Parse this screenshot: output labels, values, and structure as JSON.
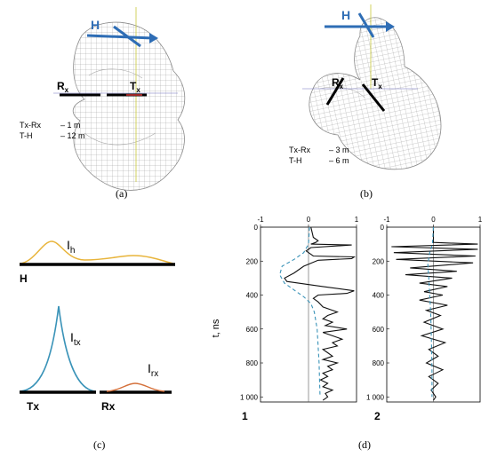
{
  "panel_a": {
    "H": "H",
    "Rx": "R",
    "Rx_sub": "x",
    "Tx": "T",
    "Tx_sub": "x",
    "param1_name": "Tx-Rx",
    "param1_val": "– 1 m",
    "param2_name": "T-H",
    "param2_val": "– 12 m",
    "caption": "(a)"
  },
  "panel_b": {
    "H": "H",
    "Rx": "R",
    "Rx_sub": "x",
    "Tx": "T",
    "Tx_sub": "x",
    "param1_name": "Tx-Rx",
    "param1_val": "– 3 m",
    "param2_name": "T-H",
    "param2_val": "– 6 m",
    "caption": "(b)"
  },
  "panel_c": {
    "Ih": "I",
    "Ih_sub": "h",
    "H": "H",
    "Itx": "I",
    "Itx_sub": "tx",
    "Irx": "I",
    "Irx_sub": "rx",
    "Tx": "Tx",
    "Rx": "Rx",
    "caption": "(c)",
    "colors": {
      "ih": "#e8b43a",
      "itx": "#3a93b8",
      "irx": "#d4703a"
    }
  },
  "panel_d": {
    "caption": "(d)",
    "ylabel": "t, ns",
    "plot1_label": "1",
    "plot2_label": "2",
    "x_ticks": [
      "-1",
      "0",
      "1"
    ],
    "y_ticks": [
      "0",
      "200",
      "400",
      "600",
      "800",
      "1 000"
    ]
  },
  "chart_data": [
    {
      "type": "line",
      "title": "",
      "ylabel": "t, ns",
      "xlim": [
        -1,
        1
      ],
      "ylim": [
        0,
        1000
      ],
      "y_inverted": true,
      "series": [
        {
          "style": "solid-black",
          "x": [
            0.05,
            0.1,
            0.2,
            0.15,
            0.05,
            0.9,
            0.05,
            -0.05,
            0.1,
            0.95,
            0.9,
            0.2,
            -0.1,
            -0.3,
            -0.5,
            -0.45,
            0.3,
            0.95,
            0.8,
            0.2,
            0.1,
            0.2,
            0.3,
            0.6,
            0.4,
            0.3,
            0.5,
            0.35,
            0.8,
            0.3,
            0.5,
            0.7,
            0.5,
            0.6,
            0.3,
            0.4,
            0.5,
            0.3,
            0.6,
            0.4,
            0.5,
            0.3,
            0.4,
            0.25,
            0.4,
            0.3,
            0.5,
            0.35,
            0.4,
            0.3
          ],
          "y": [
            0,
            60,
            80,
            90,
            100,
            105,
            120,
            140,
            170,
            175,
            185,
            195,
            230,
            270,
            300,
            320,
            350,
            375,
            390,
            400,
            420,
            440,
            470,
            500,
            520,
            540,
            560,
            580,
            600,
            620,
            640,
            660,
            680,
            700,
            720,
            740,
            760,
            780,
            800,
            820,
            840,
            860,
            880,
            900,
            920,
            940,
            960,
            980,
            1000,
            1020
          ]
        },
        {
          "style": "dashed-blue",
          "x": [
            0.02,
            0.0,
            -0.1,
            -0.3,
            -0.55,
            -0.6,
            -0.5,
            -0.3,
            -0.1,
            0.05,
            0.12,
            0.15,
            0.18,
            0.2,
            0.22,
            0.23,
            0.24
          ],
          "y": [
            0,
            100,
            150,
            190,
            230,
            280,
            330,
            370,
            410,
            450,
            500,
            550,
            600,
            700,
            800,
            900,
            1000
          ]
        }
      ]
    },
    {
      "type": "line",
      "title": "",
      "xlim": [
        -1,
        1
      ],
      "ylim": [
        0,
        1000
      ],
      "y_inverted": true,
      "series": [
        {
          "style": "solid-black",
          "x": [
            0.0,
            0.0,
            0.95,
            -0.9,
            0.95,
            -0.85,
            0.9,
            -0.8,
            0.85,
            -0.5,
            0.5,
            -0.6,
            0.4,
            -0.3,
            0.3,
            -0.2,
            0.2,
            -0.3,
            0.3,
            -0.15,
            0.15,
            -0.2,
            0.2,
            -0.25,
            0.25,
            -0.1,
            0.1,
            -0.15,
            0.2,
            -0.1,
            0.1,
            -0.05,
            0.05,
            0.0
          ],
          "y": [
            0,
            90,
            100,
            115,
            130,
            150,
            170,
            190,
            210,
            240,
            260,
            280,
            300,
            330,
            350,
            380,
            400,
            430,
            460,
            490,
            520,
            560,
            600,
            640,
            680,
            720,
            760,
            800,
            840,
            880,
            920,
            960,
            1000,
            1020
          ]
        },
        {
          "style": "dashed-blue",
          "x": [
            0.0,
            -0.02,
            -0.08,
            -0.12,
            -0.1,
            -0.08,
            -0.06,
            -0.05,
            -0.04,
            -0.03,
            -0.03
          ],
          "y": [
            0,
            100,
            150,
            220,
            300,
            400,
            500,
            600,
            700,
            850,
            1000
          ]
        }
      ]
    }
  ]
}
